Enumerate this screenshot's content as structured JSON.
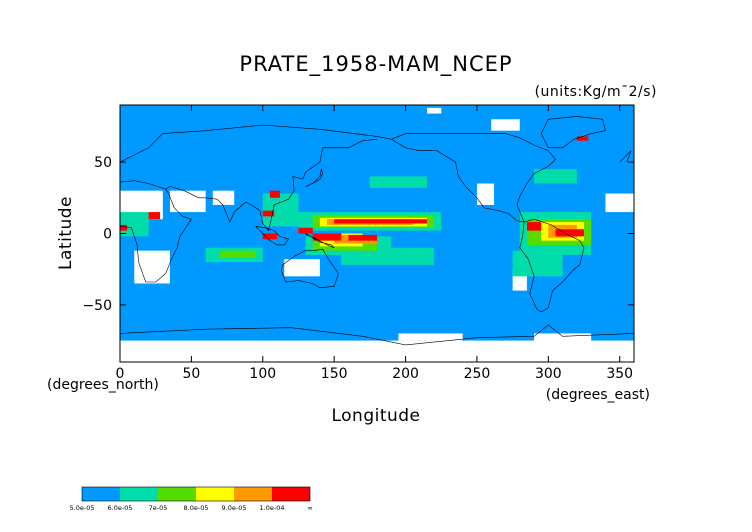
{
  "chart_data": {
    "type": "heatmap",
    "title": "PRATE_1958-MAM_NCEP",
    "units": "(units:Kg/m¯2/s)",
    "xlabel": "Longitude",
    "ylabel": "Latitude",
    "x_units_note": "(degrees_east)",
    "y_units_note": "(degrees_north)",
    "xlim": [
      0,
      360
    ],
    "ylim": [
      -90,
      90
    ],
    "x_ticks": [
      "0",
      "50",
      "100",
      "150",
      "200",
      "250",
      "300",
      "350"
    ],
    "y_ticks": [
      "50",
      "0",
      "−50"
    ],
    "background_color": "#0099ff",
    "colorbar": {
      "bins": [
        {
          "color": "#0099ff"
        },
        {
          "color": "#00ddaa"
        },
        {
          "color": "#55dd00"
        },
        {
          "color": "#ffff00"
        },
        {
          "color": "#ff9900"
        },
        {
          "color": "#ff0000"
        }
      ],
      "labels": [
        "5.0e-05",
        "6.0e-05",
        "7e-05",
        "8.0e-05",
        "9.0e-05",
        "1.0e-04",
        "∞"
      ]
    },
    "regions": [
      {
        "level": "missing",
        "lon": [
          0,
          30
        ],
        "lat": [
          10,
          30
        ]
      },
      {
        "level": "missing",
        "lon": [
          35,
          60
        ],
        "lat": [
          15,
          30
        ]
      },
      {
        "level": "missing",
        "lon": [
          65,
          80
        ],
        "lat": [
          20,
          30
        ]
      },
      {
        "level": "missing",
        "lon": [
          10,
          35
        ],
        "lat": [
          -35,
          -12
        ]
      },
      {
        "level": "missing",
        "lon": [
          115,
          140
        ],
        "lat": [
          -30,
          -18
        ]
      },
      {
        "level": "missing",
        "lon": [
          250,
          262
        ],
        "lat": [
          20,
          35
        ]
      },
      {
        "level": "missing",
        "lon": [
          0,
          360
        ],
        "lat": [
          -90,
          -75
        ]
      },
      {
        "level": "missing",
        "lon": [
          195,
          240
        ],
        "lat": [
          -75,
          -70
        ]
      },
      {
        "level": "missing",
        "lon": [
          290,
          330
        ],
        "lat": [
          -80,
          -70
        ]
      },
      {
        "level": "missing",
        "lon": [
          340,
          360
        ],
        "lat": [
          15,
          28
        ]
      },
      {
        "level": "missing",
        "lon": [
          275,
          285
        ],
        "lat": [
          -40,
          -25
        ]
      },
      {
        "level": "missing",
        "lon": [
          215,
          225
        ],
        "lat": [
          84,
          88
        ]
      },
      {
        "level": "missing",
        "lon": [
          260,
          280
        ],
        "lat": [
          72,
          80
        ]
      },
      {
        "level": "6e-05",
        "lon": [
          125,
          225
        ],
        "lat": [
          2,
          15
        ]
      },
      {
        "level": "6e-05",
        "lon": [
          130,
          190
        ],
        "lat": [
          -15,
          -2
        ]
      },
      {
        "level": "6e-05",
        "lon": [
          60,
          100
        ],
        "lat": [
          -20,
          -10
        ]
      },
      {
        "level": "6e-05",
        "lon": [
          155,
          220
        ],
        "lat": [
          -22,
          -10
        ]
      },
      {
        "level": "6e-05",
        "lon": [
          280,
          330
        ],
        "lat": [
          -15,
          15
        ]
      },
      {
        "level": "6e-05",
        "lon": [
          275,
          310
        ],
        "lat": [
          -30,
          -12
        ]
      },
      {
        "level": "6e-05",
        "lon": [
          0,
          20
        ],
        "lat": [
          -2,
          15
        ]
      },
      {
        "level": "6e-05",
        "lon": [
          100,
          125
        ],
        "lat": [
          5,
          28
        ]
      },
      {
        "level": "6e-05",
        "lon": [
          175,
          215
        ],
        "lat": [
          32,
          40
        ]
      },
      {
        "level": "6e-05",
        "lon": [
          290,
          320
        ],
        "lat": [
          35,
          45
        ]
      },
      {
        "level": "7e-05",
        "lon": [
          135,
          220
        ],
        "lat": [
          4,
          13
        ]
      },
      {
        "level": "7e-05",
        "lon": [
          135,
          180
        ],
        "lat": [
          -12,
          -2
        ]
      },
      {
        "level": "7e-05",
        "lon": [
          285,
          330
        ],
        "lat": [
          -8,
          10
        ]
      },
      {
        "level": "7e-05",
        "lon": [
          70,
          95
        ],
        "lat": [
          -17,
          -12
        ]
      },
      {
        "level": "8e-05",
        "lon": [
          140,
          215
        ],
        "lat": [
          5,
          11
        ]
      },
      {
        "level": "8e-05",
        "lon": [
          140,
          170
        ],
        "lat": [
          -9,
          0
        ]
      },
      {
        "level": "8e-05",
        "lon": [
          295,
          325
        ],
        "lat": [
          -5,
          8
        ]
      },
      {
        "level": "9e-05",
        "lon": [
          145,
          205
        ],
        "lat": [
          6,
          10
        ]
      },
      {
        "level": "9e-05",
        "lon": [
          150,
          180
        ],
        "lat": [
          -7,
          -1
        ]
      },
      {
        "level": "9e-05",
        "lon": [
          300,
          320
        ],
        "lat": [
          -3,
          6
        ]
      },
      {
        "level": "1e-04",
        "lon": [
          150,
          215
        ],
        "lat": [
          7,
          10
        ]
      },
      {
        "level": "1e-04",
        "lon": [
          135,
          155
        ],
        "lat": [
          -5,
          0
        ]
      },
      {
        "level": "1e-04",
        "lon": [
          160,
          180
        ],
        "lat": [
          -5,
          -1
        ]
      },
      {
        "level": "1e-04",
        "lon": [
          305,
          325
        ],
        "lat": [
          -2,
          3
        ]
      },
      {
        "level": "1e-04",
        "lon": [
          285,
          295
        ],
        "lat": [
          2,
          8
        ]
      },
      {
        "level": "1e-04",
        "lon": [
          0,
          5
        ],
        "lat": [
          2,
          6
        ]
      },
      {
        "level": "1e-04",
        "lon": [
          20,
          28
        ],
        "lat": [
          10,
          15
        ]
      },
      {
        "level": "1e-04",
        "lon": [
          105,
          112
        ],
        "lat": [
          25,
          30
        ]
      },
      {
        "level": "1e-04",
        "lon": [
          100,
          108
        ],
        "lat": [
          12,
          16
        ]
      },
      {
        "level": "1e-04",
        "lon": [
          320,
          328
        ],
        "lat": [
          65,
          68
        ]
      },
      {
        "level": "1e-04",
        "lon": [
          125,
          135
        ],
        "lat": [
          0,
          4
        ]
      },
      {
        "level": "1e-04",
        "lon": [
          100,
          110
        ],
        "lat": [
          -4,
          0
        ]
      }
    ]
  }
}
